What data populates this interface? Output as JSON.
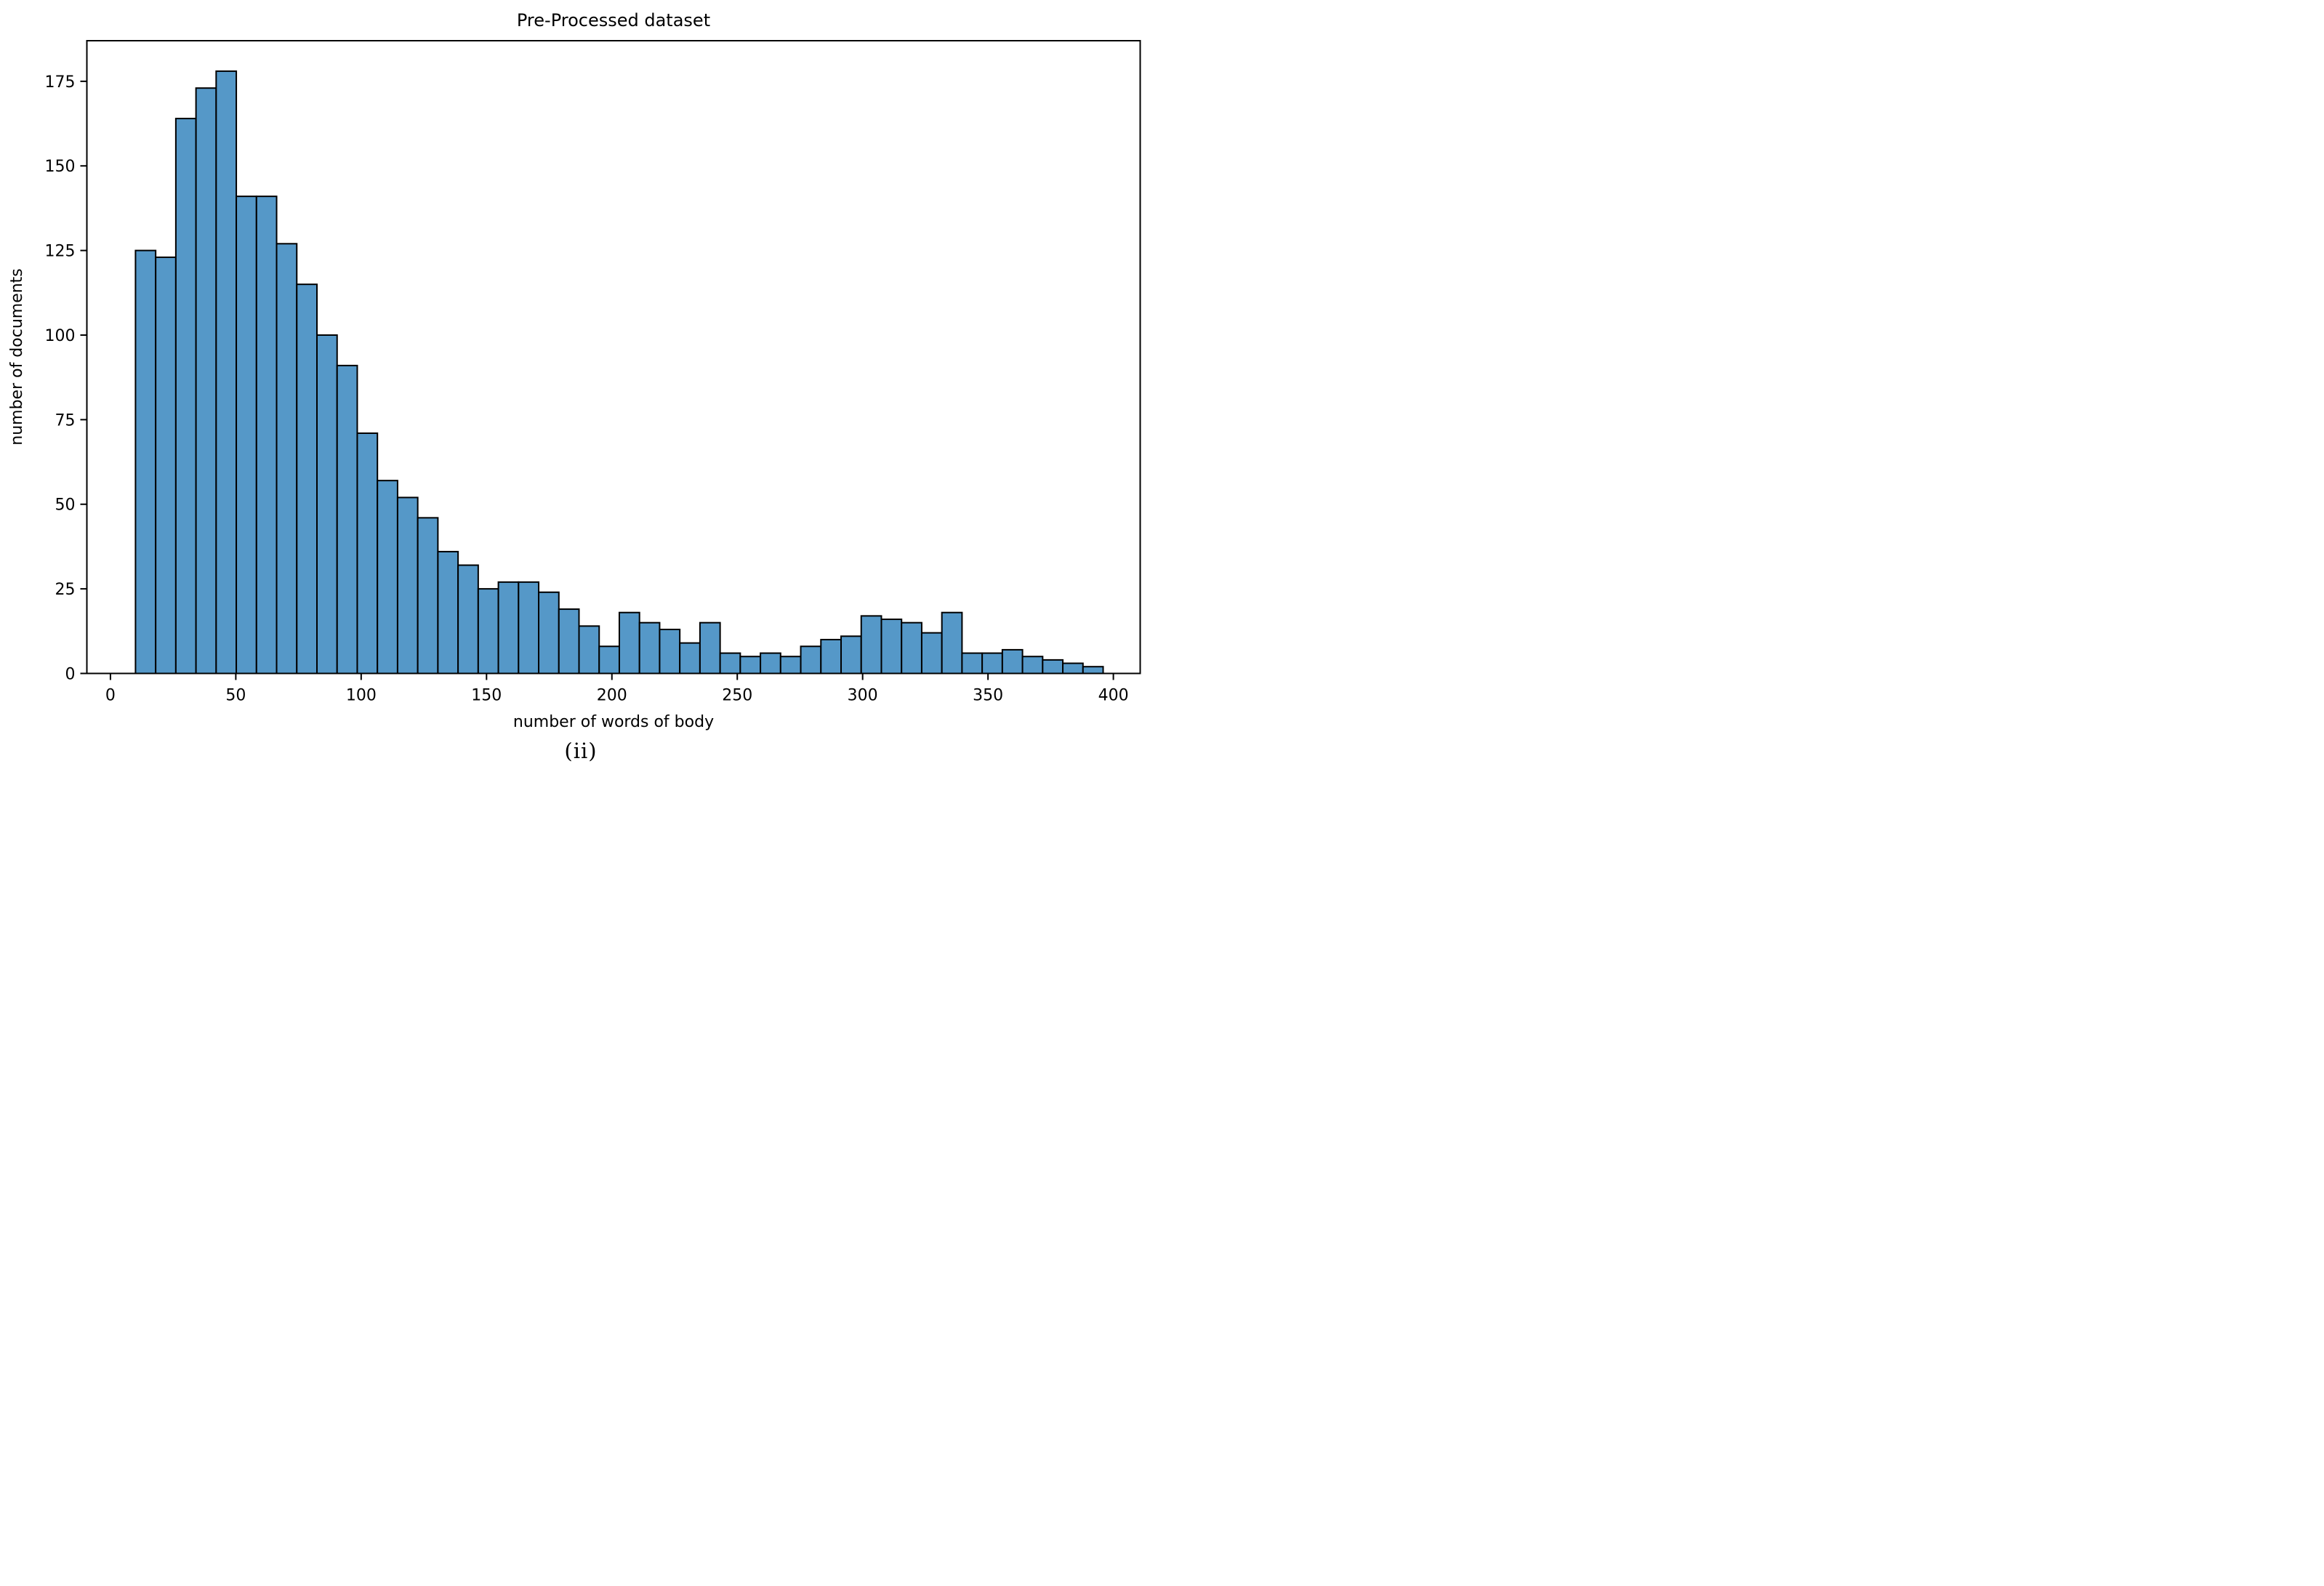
{
  "chart_data": {
    "type": "bar",
    "subtype": "histogram",
    "title": "Pre-Processed dataset",
    "xlabel": "number of words of body",
    "ylabel": "number of documents",
    "caption": "(ii)",
    "bin_start": 10,
    "bin_width": 8.04,
    "values": [
      125,
      123,
      164,
      173,
      178,
      141,
      141,
      127,
      115,
      100,
      91,
      71,
      57,
      52,
      46,
      36,
      32,
      25,
      27,
      27,
      24,
      19,
      14,
      8,
      18,
      15,
      13,
      9,
      15,
      6,
      5,
      6,
      5,
      8,
      10,
      11,
      17,
      16,
      15,
      12,
      18,
      6,
      6,
      7,
      5,
      4,
      3,
      2
    ],
    "x_ticks": [
      0,
      50,
      100,
      150,
      200,
      250,
      300,
      350,
      400
    ],
    "y_ticks": [
      0,
      25,
      50,
      75,
      100,
      125,
      150,
      175
    ],
    "xlim": [
      -9.4,
      410.7
    ],
    "ylim": [
      0,
      187
    ],
    "grid": false,
    "legend": "none",
    "bar_color": "#5598c8",
    "bar_edge_color": "#000000",
    "axis_color": "#000000",
    "text_color": "#000000"
  }
}
